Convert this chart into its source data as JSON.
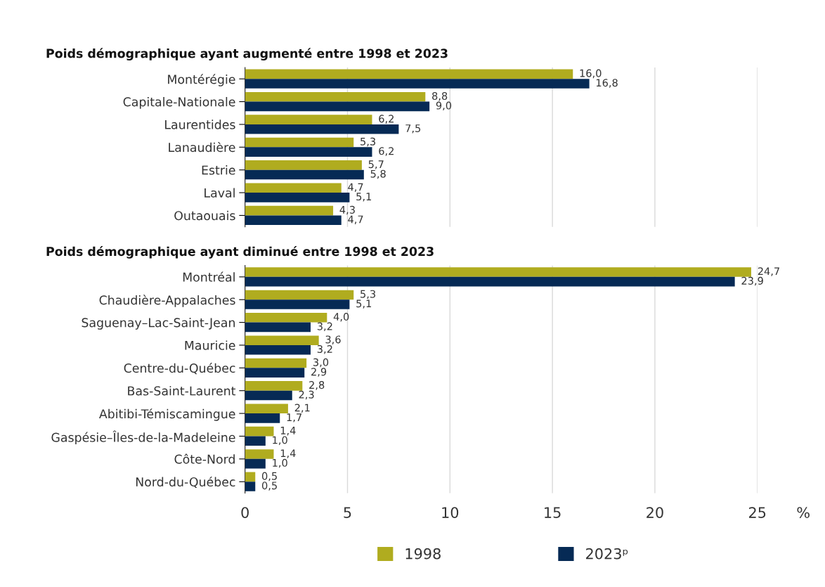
{
  "chart_data": [
    {
      "type": "bar",
      "orientation": "horizontal",
      "title": "Poids démographique ayant augmenté entre 1998 et 2023",
      "categories": [
        "Montérégie",
        "Capitale-Nationale",
        "Laurentides",
        "Lanaudière",
        "Estrie",
        "Laval",
        "Outaouais"
      ],
      "series": [
        {
          "color": "#b0ac1f",
          "values": [
            16.0,
            8.8,
            6.2,
            5.3,
            5.7,
            4.7,
            4.3
          ],
          "value_labels": [
            "16,0",
            "8,8",
            "6,2",
            "5,3",
            "5,7",
            "4,7",
            "4,3"
          ]
        },
        {
          "color": "#062a55",
          "values": [
            16.8,
            9.0,
            7.5,
            6.2,
            5.8,
            5.1,
            4.7
          ],
          "value_labels": [
            "16,8",
            "9,0",
            "7,5",
            "6,2",
            "5,8",
            "5,1",
            "4,7"
          ]
        }
      ],
      "xlim": [
        0,
        25
      ],
      "xticks": [
        0,
        5,
        10,
        15,
        20,
        25
      ],
      "grid": "x",
      "tick_labels": "y"
    },
    {
      "type": "bar",
      "orientation": "horizontal",
      "title": "Poids démographique ayant diminué entre 1998 et 2023",
      "xlabel": "%",
      "categories": [
        "Montréal",
        "Chaudière-Appalaches",
        "Saguenay–Lac-Saint-Jean",
        "Mauricie",
        "Centre-du-Québec",
        "Bas-Saint-Laurent",
        "Abitibi-Témiscamingue",
        "Gaspésie–Îles-de-la-Madeleine",
        "Côte-Nord",
        "Nord-du-Québec"
      ],
      "series": [
        {
          "name": "1998",
          "color": "#b0ac1f",
          "values": [
            24.7,
            5.3,
            4.0,
            3.6,
            3.0,
            2.8,
            2.1,
            1.4,
            1.4,
            0.5
          ],
          "value_labels": [
            "24,7",
            "5,3",
            "4,0",
            "3,6",
            "3,0",
            "2,8",
            "2,1",
            "1,4",
            "1,4",
            "0,5"
          ]
        },
        {
          "name": "2023ᵖ",
          "color": "#062a55",
          "values": [
            23.9,
            5.1,
            3.2,
            3.2,
            2.9,
            2.3,
            1.7,
            1.0,
            1.0,
            0.5
          ],
          "value_labels": [
            "23,9",
            "5,1",
            "3,2",
            "3,2",
            "2,9",
            "2,3",
            "1,7",
            "1,0",
            "1,0",
            "0,5"
          ]
        }
      ],
      "xlim": [
        0,
        25
      ],
      "xticks": [
        0,
        5,
        10,
        15,
        20,
        25
      ],
      "grid": "x",
      "legend": "bottom"
    }
  ]
}
